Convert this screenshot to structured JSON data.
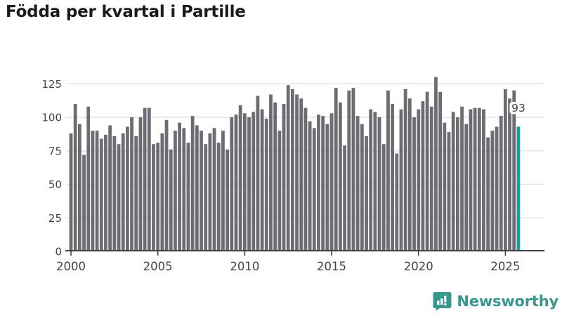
{
  "header": {
    "title": "Födda per kvartal i Partille"
  },
  "chart_data": {
    "type": "bar",
    "title": "Födda per kvartal i Partille",
    "period": "quarterly",
    "x_start": "2000 Q1",
    "x_end": "2025 Q4",
    "values": [
      88,
      110,
      95,
      72,
      108,
      90,
      90,
      84,
      87,
      94,
      86,
      80,
      88,
      93,
      100,
      86,
      100,
      107,
      107,
      80,
      81,
      88,
      98,
      76,
      90,
      96,
      92,
      81,
      101,
      94,
      90,
      80,
      88,
      92,
      81,
      90,
      76,
      100,
      102,
      109,
      103,
      100,
      104,
      116,
      106,
      99,
      117,
      111,
      90,
      110,
      124,
      121,
      117,
      114,
      107,
      97,
      92,
      102,
      101,
      95,
      103,
      122,
      111,
      79,
      120,
      122,
      101,
      95,
      86,
      106,
      104,
      100,
      80,
      120,
      110,
      73,
      106,
      121,
      114,
      100,
      106,
      112,
      119,
      108,
      130,
      119,
      96,
      89,
      104,
      100,
      108,
      95,
      106,
      107,
      107,
      106,
      85,
      90,
      93,
      101,
      121,
      114,
      120,
      93
    ],
    "x_tick_labels": [
      "2000",
      "2005",
      "2010",
      "2015",
      "2020",
      "2025"
    ],
    "x_tick_indices": [
      0,
      20,
      40,
      60,
      80,
      100
    ],
    "y_ticks": [
      0,
      25,
      50,
      75,
      100,
      125
    ],
    "ylim": [
      0,
      132
    ],
    "grid": true,
    "legend": "none",
    "highlight": {
      "index": 103,
      "value": 93,
      "label": "93"
    }
  },
  "colors": {
    "background": "#ffffff",
    "bar": "#6d6c72",
    "highlight_bar": "#12a1a7",
    "title": "#1b1b1b",
    "axis_line": "#3f3f3f",
    "tick_label": "#444444",
    "gridline": "#e6e6e6",
    "value_label_text": "#3f3f3f",
    "value_label_bg": "#ffffff",
    "logo": "#38988e"
  },
  "footer": {
    "brand": "Newsworthy"
  }
}
